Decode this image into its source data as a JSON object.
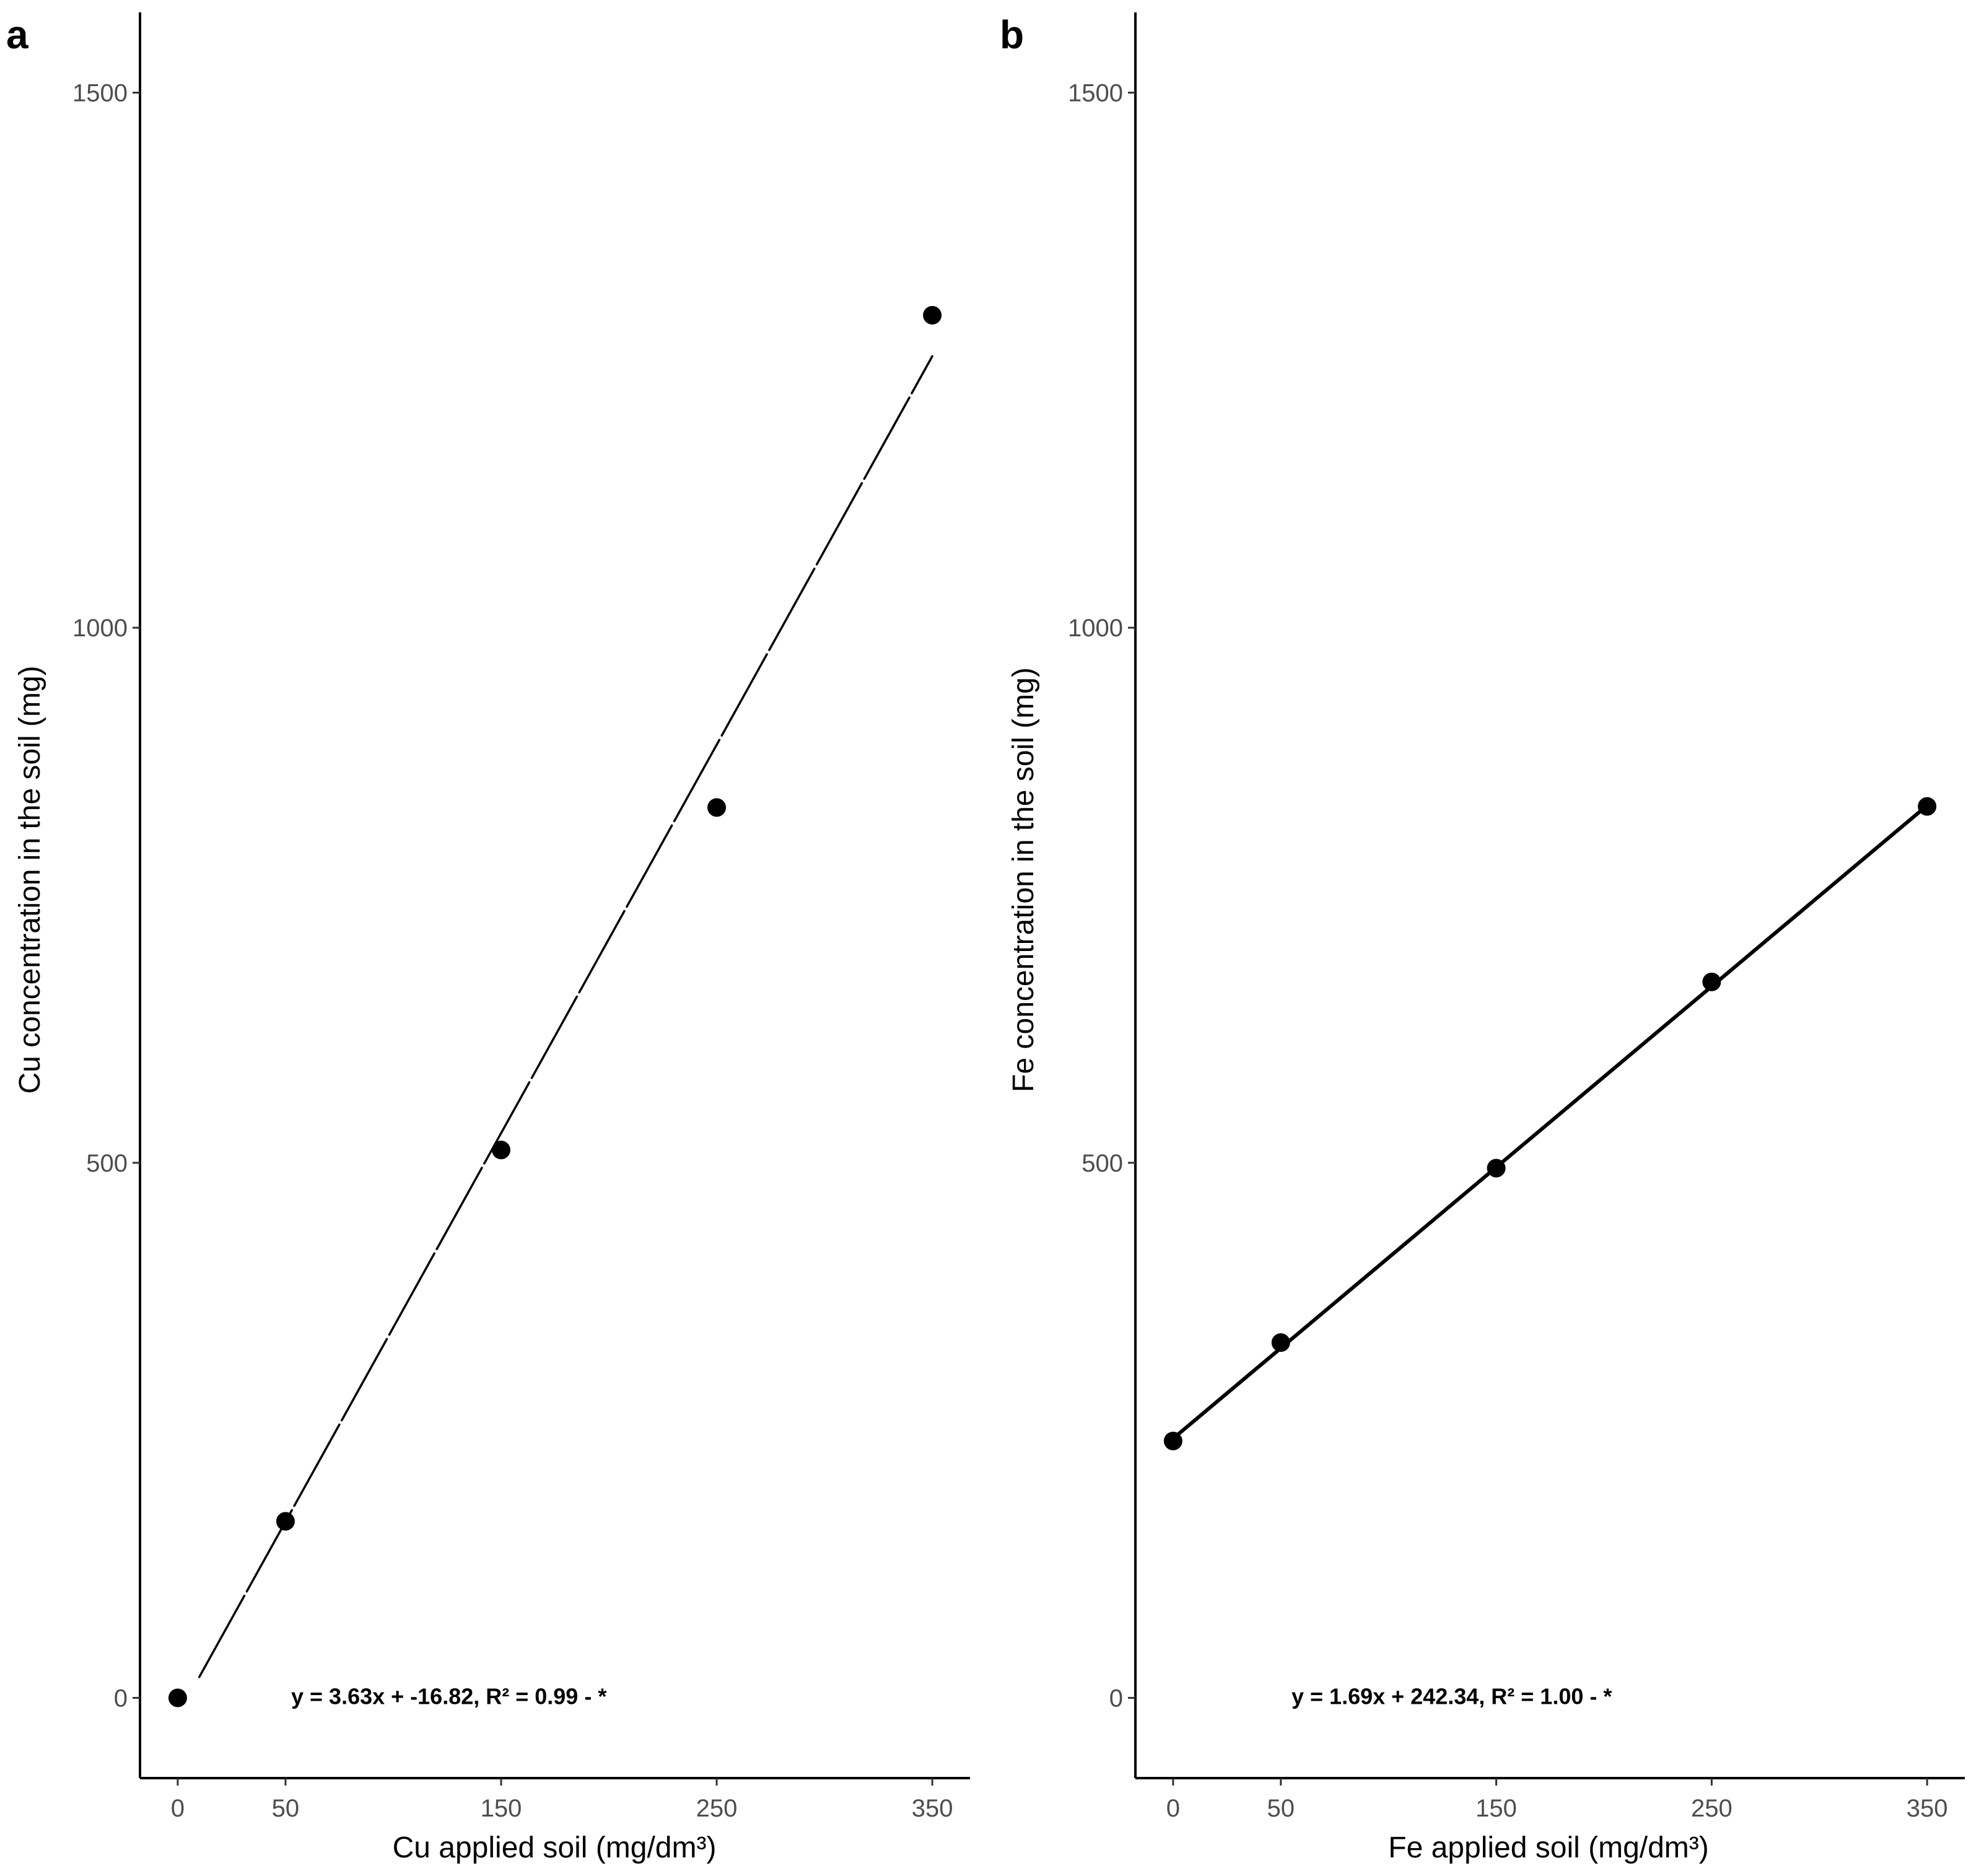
{
  "chart_data": [
    {
      "type": "scatter",
      "panel_label": "a",
      "xlabel": "Cu applied soil (mg/dm³)",
      "ylabel": "Cu concentration in the soil (mg)",
      "x_ticks": [
        0,
        50,
        150,
        250,
        350
      ],
      "y_ticks": [
        0,
        500,
        1000,
        1500
      ],
      "xlim": [
        -17.5,
        367.5
      ],
      "ylim": [
        -75,
        1575
      ],
      "grid": false,
      "points": [
        {
          "x": 0,
          "y": 0
        },
        {
          "x": 50,
          "y": 165
        },
        {
          "x": 150,
          "y": 512
        },
        {
          "x": 250,
          "y": 832
        },
        {
          "x": 350,
          "y": 1292
        }
      ],
      "fit": {
        "slope": 3.63,
        "intercept": -16.82,
        "x_range": [
          10,
          350
        ],
        "style": "dashed"
      },
      "equation": "y =  3.63x + -16.82, R² = 0.99 - *"
    },
    {
      "type": "scatter",
      "panel_label": "b",
      "xlabel": "Fe applied soil (mg/dm³)",
      "ylabel": "Fe concentration in the soil (mg)",
      "x_ticks": [
        0,
        50,
        150,
        250,
        350
      ],
      "y_ticks": [
        0,
        500,
        1000,
        1500
      ],
      "xlim": [
        -17.5,
        367.5
      ],
      "ylim": [
        -75,
        1575
      ],
      "grid": false,
      "points": [
        {
          "x": 0,
          "y": 240
        },
        {
          "x": 50,
          "y": 332
        },
        {
          "x": 150,
          "y": 495
        },
        {
          "x": 250,
          "y": 669
        },
        {
          "x": 350,
          "y": 833
        }
      ],
      "fit": {
        "slope": 1.69,
        "intercept": 242.34,
        "x_range": [
          0,
          350
        ],
        "style": "solid"
      },
      "equation": "y =  1.69x + 242.34, R² = 1.00 - *"
    }
  ]
}
